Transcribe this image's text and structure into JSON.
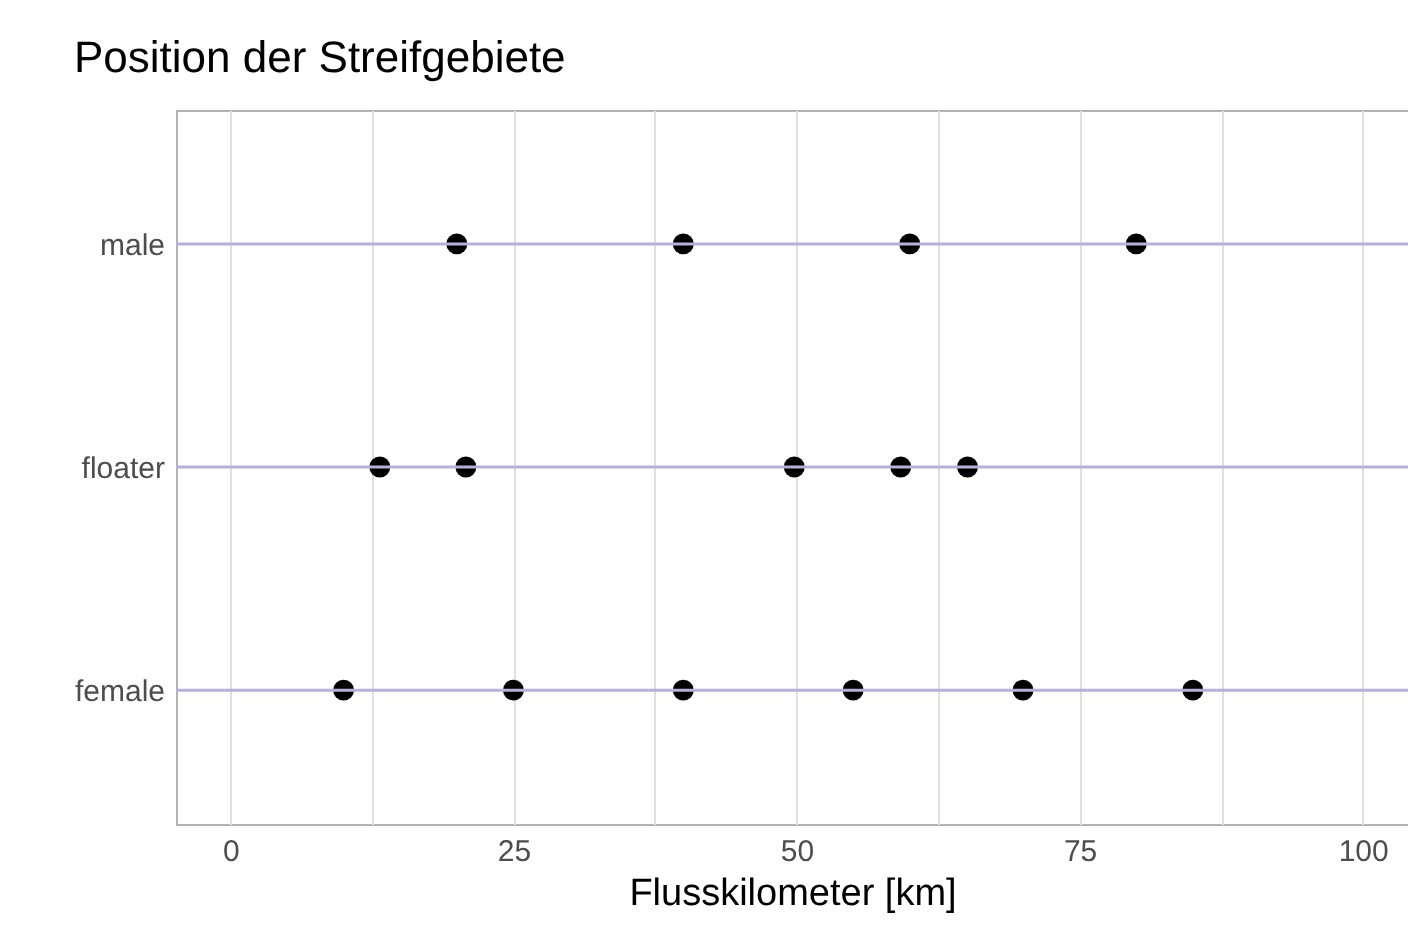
{
  "chart_data": {
    "type": "scatter",
    "title": "Position der Streifgebiete",
    "xlabel": "Flusskilometer [km]",
    "orientation": "horizontal",
    "categories": [
      "male",
      "floater",
      "female"
    ],
    "series": [
      {
        "color": "#000000",
        "x": [
          "male",
          "male",
          "male",
          "male"
        ],
        "values": [
          20,
          40,
          60,
          80
        ]
      },
      {
        "color": "#000000",
        "x": [
          "floater",
          "floater",
          "floater",
          "floater",
          "floater"
        ],
        "values": [
          13.2,
          20.8,
          49.8,
          59.2,
          65.1
        ]
      },
      {
        "color": "#000000",
        "x": [
          "female",
          "female",
          "female",
          "female",
          "female",
          "female"
        ],
        "values": [
          10,
          25,
          40,
          55,
          70,
          85
        ]
      }
    ],
    "ref_lines": [
      {
        "axis": "y",
        "value": "male",
        "color": "#b8b0dc"
      },
      {
        "axis": "y",
        "value": "floater",
        "color": "#b8b0dc"
      },
      {
        "axis": "y",
        "value": "female",
        "color": "#b8b0dc"
      }
    ],
    "xlim": [
      -4.8,
      104
    ],
    "xticks": [
      0,
      {
        "value": 12.5,
        "label": null
      },
      25,
      {
        "value": 37.5,
        "label": null
      },
      50,
      {
        "value": 62.5,
        "label": null
      },
      75,
      {
        "value": 87.5,
        "label": null
      },
      100
    ],
    "grid": "x",
    "marker": "circle"
  }
}
